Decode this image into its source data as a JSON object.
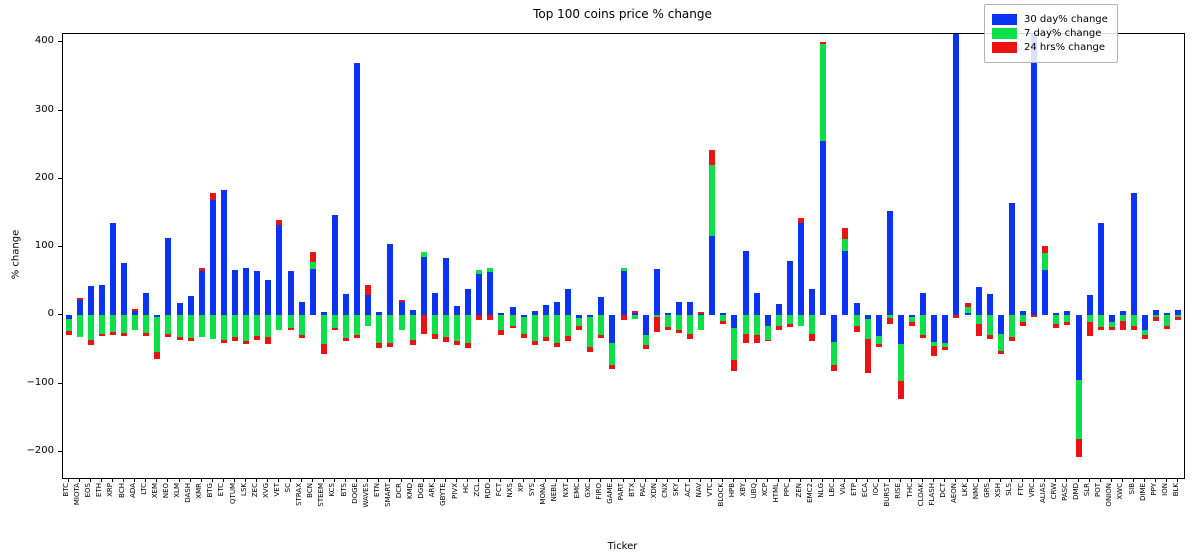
{
  "title": "Top 100 coins price % change",
  "axes": {
    "xlabel": "Ticker",
    "ylabel": "% change",
    "yticks": [
      400,
      300,
      200,
      100,
      0,
      -100,
      -200
    ],
    "ylim": [
      -238,
      412
    ]
  },
  "legend": {
    "items": [
      {
        "label": "30 day% change",
        "color": "#0b33f3"
      },
      {
        "label": "7 day% change",
        "color": "#0ddf48"
      },
      {
        "label": "24 hrs% change",
        "color": "#ec1212"
      }
    ]
  },
  "chart_data": {
    "type": "bar",
    "stacked": true,
    "title": "Top 100 coins price % change",
    "xlabel": "Ticker",
    "ylabel": "% change",
    "ylim": [
      -238,
      412
    ],
    "grid": false,
    "legend_position": "upper right",
    "categories": [
      "BTC",
      "MIOTA",
      "EOS",
      "ETH",
      "XRP",
      "BCH",
      "ADA",
      "LTC",
      "XEM",
      "NEO",
      "XLM",
      "DASH",
      "XMR",
      "BTG",
      "ETC",
      "QTUM",
      "LSK",
      "ZEC",
      "XVG",
      "VET",
      "SC",
      "STRAX",
      "BCN",
      "STEEM",
      "KCS",
      "BTS",
      "DOGE",
      "WAVES",
      "ETN",
      "SMART",
      "DCR",
      "KMD",
      "DGB",
      "ARK",
      "GBYTE",
      "PIVX",
      "HC",
      "ZCL",
      "RDD",
      "FCT",
      "NXS",
      "XP",
      "SYS",
      "MONA",
      "NEBL",
      "NXT",
      "EMC",
      "GXC",
      "FIRO",
      "GAME",
      "PART",
      "BTX",
      "PAC",
      "XDN",
      "CNX",
      "SKY",
      "ACT",
      "NAV",
      "VTC",
      "BLOCK",
      "HPB",
      "XBY",
      "UBQ",
      "XCP",
      "HTML",
      "PPC",
      "ZEN",
      "EMC2",
      "NLG",
      "LBC",
      "VIA",
      "ETP",
      "ECA",
      "IOC",
      "BURST",
      "RISE",
      "THC",
      "CLOAK",
      "FLASH",
      "DCT",
      "AEON",
      "LKK",
      "NMC",
      "GRS",
      "XSH",
      "SLS",
      "FTC",
      "VRC",
      "ALIAS",
      "CRW",
      "PASC",
      "DMD",
      "SLR",
      "POT",
      "ONION",
      "XWC",
      "SIB",
      "DIME",
      "PPY",
      "ION",
      "BLK"
    ],
    "series": [
      {
        "name": "30 day% change",
        "color": "#0b33f3",
        "values": [
          -5,
          23,
          43,
          45,
          135,
          77,
          7,
          33,
          -2,
          113,
          18,
          29,
          65,
          169,
          184,
          67,
          70,
          65,
          52,
          133,
          65,
          20,
          68,
          5,
          147,
          31,
          370,
          30,
          5,
          105,
          20,
          8,
          85,
          33,
          84,
          14,
          38,
          60,
          63,
          4,
          13,
          -3,
          6,
          15,
          19,
          39,
          -4,
          -2,
          27,
          -41,
          65,
          3,
          -28,
          68,
          3,
          20,
          19,
          2,
          116,
          3,
          -19,
          95,
          33,
          -16,
          16,
          79,
          136,
          38,
          255,
          -39,
          95,
          18,
          -5,
          -30,
          153,
          -42,
          -2,
          33,
          -39,
          -40,
          450,
          3,
          42,
          31,
          -27,
          164,
          6,
          440,
          66,
          4,
          6,
          -94,
          30,
          135,
          -10,
          6,
          179,
          -21,
          8,
          3,
          8
        ]
      },
      {
        "name": "7 day% change",
        "color": "#0ddf48",
        "values": [
          -18,
          -31,
          -36,
          -27,
          -24,
          -26,
          -21,
          -26,
          -52,
          -27,
          -32,
          -33,
          -31,
          -34,
          -36,
          -32,
          -37,
          -30,
          -32,
          -21,
          -18,
          -28,
          10,
          -42,
          -18,
          -33,
          -28,
          -15,
          -41,
          -41,
          -22,
          -36,
          8,
          -27,
          -32,
          -37,
          -41,
          7,
          7,
          -22,
          -16,
          -24,
          -37,
          -32,
          -40,
          -30,
          -12,
          -44,
          -28,
          -32,
          5,
          -5,
          -16,
          -3,
          -17,
          -22,
          -27,
          -21,
          104,
          -8,
          -46,
          -27,
          -28,
          -20,
          -15,
          -12,
          -15,
          -27,
          142,
          -33,
          17,
          -16,
          -30,
          -12,
          -4,
          -54,
          -8,
          -28,
          -6,
          -6,
          2,
          9,
          -12,
          -28,
          -25,
          -31,
          -10,
          3,
          26,
          -13,
          -9,
          -87,
          -10,
          -17,
          -7,
          -8,
          -16,
          -7,
          -3,
          -16,
          -3
        ]
      },
      {
        "name": "24 hrs% change",
        "color": "#ec1212",
        "values": [
          -5,
          3,
          -7,
          -3,
          -4,
          -4,
          2,
          -4,
          -10,
          -4,
          -4,
          -4,
          4,
          10,
          -4,
          -5,
          -5,
          -6,
          -10,
          7,
          -4,
          -5,
          15,
          -15,
          -4,
          -5,
          -5,
          15,
          -7,
          -5,
          3,
          -7,
          -27,
          -7,
          -7,
          -6,
          -6,
          -6,
          -6,
          -6,
          -3,
          -6,
          -7,
          -5,
          -6,
          -7,
          -5,
          -7,
          -5,
          -6,
          -6,
          4,
          -5,
          -22,
          -4,
          -3,
          -7,
          3,
          22,
          -5,
          -16,
          -13,
          -12,
          -2,
          -6,
          -5,
          6,
          -11,
          3,
          -9,
          16,
          -8,
          -50,
          -4,
          -8,
          -27,
          -5,
          -5,
          -15,
          -5,
          -4,
          6,
          -18,
          -6,
          -4,
          -7,
          -6,
          -3,
          9,
          -6,
          -5,
          -26,
          -20,
          -5,
          -4,
          -13,
          -5,
          -6,
          -5,
          -4,
          -4
        ]
      }
    ]
  }
}
